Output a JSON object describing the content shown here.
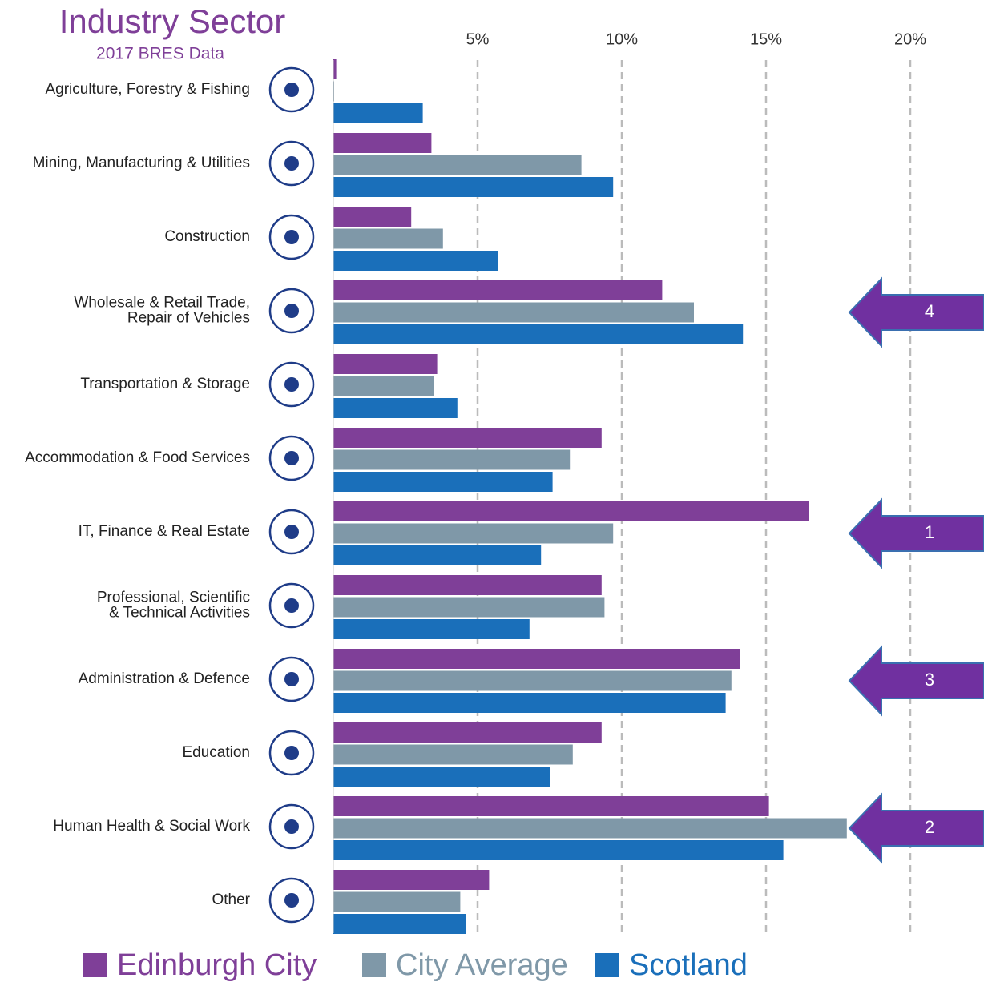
{
  "chart_data": {
    "type": "bar",
    "orientation": "horizontal",
    "title": "Industry Sector",
    "subtitle": "2017 BRES Data",
    "categories": [
      "Agriculture, Forestry & Fishing",
      "Mining, Manufacturing & Utilities",
      "Construction",
      "Wholesale & Retail Trade,\nRepair of Vehicles",
      "Transportation & Storage",
      "Accommodation & Food Services",
      "IT, Finance & Real Estate",
      "Professional, Scientific\n& Technical Activities",
      "Administration & Defence",
      "Education",
      "Human Health & Social Work",
      "Other"
    ],
    "series": [
      {
        "name": "Edinburgh City",
        "color": "#7f3f98",
        "values": [
          0.1,
          3.4,
          2.7,
          11.4,
          3.6,
          9.3,
          16.5,
          9.3,
          14.1,
          9.3,
          15.1,
          5.4
        ]
      },
      {
        "name": "City Average",
        "color": "#7f98a8",
        "values": [
          0,
          8.6,
          3.8,
          12.5,
          3.5,
          8.2,
          9.7,
          9.4,
          13.8,
          8.3,
          17.8,
          4.4
        ]
      },
      {
        "name": "Scotland",
        "color": "#1a6fba",
        "values": [
          3.1,
          9.7,
          5.7,
          14.2,
          4.3,
          7.6,
          7.2,
          6.8,
          13.6,
          7.5,
          15.6,
          4.6
        ]
      }
    ],
    "xlim": [
      0,
      22.5
    ],
    "xticks": [
      {
        "value": 5,
        "label": "5%"
      },
      {
        "value": 10,
        "label": "10%"
      },
      {
        "value": 15,
        "label": "15%"
      },
      {
        "value": 20,
        "label": "20%"
      }
    ],
    "grid": true,
    "legend": "bottom",
    "annotations": [
      null,
      null,
      null,
      4,
      null,
      null,
      1,
      null,
      3,
      null,
      2,
      null
    ]
  }
}
